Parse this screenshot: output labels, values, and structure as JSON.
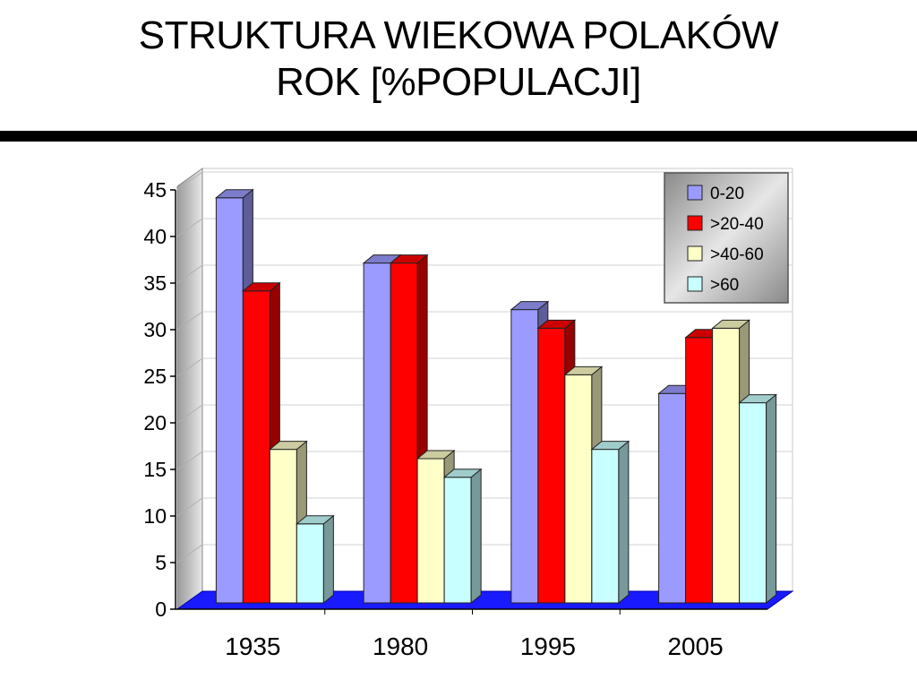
{
  "slide": {
    "title_line1": "STRUKTURA WIEKOWA POLAKÓW",
    "title_line2": "ROK [%POPULACJI]"
  },
  "chart_data": {
    "type": "bar",
    "style": "3d-clustered-columns",
    "categories": [
      "1935",
      "1980",
      "1995",
      "2005"
    ],
    "series": [
      {
        "name": "0-20",
        "values": [
          43,
          36,
          31,
          22
        ],
        "color": "#9b9bff"
      },
      {
        "name": ">20-40",
        "values": [
          33,
          36,
          29,
          28
        ],
        "color": "#ff0000"
      },
      {
        "name": ">40-60",
        "values": [
          16,
          15,
          24,
          29
        ],
        "color": "#ffffc8"
      },
      {
        "name": ">60",
        "values": [
          8,
          13,
          16,
          21
        ],
        "color": "#c8ffff"
      }
    ],
    "ylim": [
      0,
      45
    ],
    "yticks": [
      0,
      5,
      10,
      15,
      20,
      25,
      30,
      35,
      40,
      45
    ],
    "grid": true,
    "legend_position": "top-right",
    "floor_color": "#1a1aff",
    "title": "",
    "xlabel": "",
    "ylabel": ""
  }
}
